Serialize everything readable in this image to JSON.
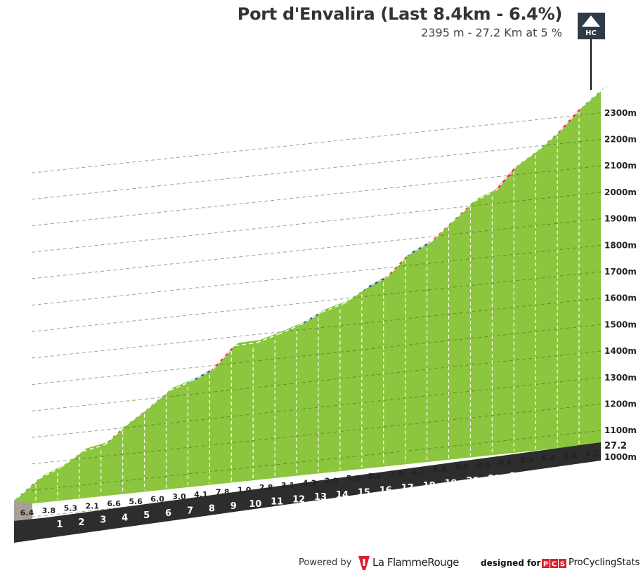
{
  "chart_data": {
    "type": "area",
    "title": "Port d'Envalira (Last 8.4km - 6.4%)",
    "subtitle": "2395 m - 27.2 Km at 5 %",
    "category_badge": "HC",
    "y_ticks": [
      "1000m",
      "1100m",
      "1200m",
      "1300m",
      "1400m",
      "1500m",
      "1600m",
      "1700m",
      "1800m",
      "1900m",
      "2000m",
      "2100m",
      "2200m",
      "2300m"
    ],
    "y_tick_values": [
      1000,
      1100,
      1200,
      1300,
      1400,
      1500,
      1600,
      1700,
      1800,
      1900,
      2000,
      2100,
      2200,
      2300
    ],
    "ylim": [
      1050,
      2395
    ],
    "x_ticks": [
      "1",
      "2",
      "3",
      "4",
      "5",
      "6",
      "7",
      "8",
      "9",
      "10",
      "11",
      "12",
      "13",
      "14",
      "15",
      "16",
      "17",
      "18",
      "19",
      "20",
      "21",
      "22",
      "23",
      "24",
      "25",
      "26"
    ],
    "total_distance_label": "27.2",
    "grades": [
      6.4,
      3.8,
      5.3,
      2.1,
      6.6,
      5.6,
      6.0,
      3.0,
      4.1,
      7.8,
      1.0,
      2.8,
      3.1,
      4.3,
      2.8,
      5.0,
      3.9,
      7.5,
      4.1,
      6.8,
      6.8,
      3.6,
      8.4,
      5.3,
      6.4,
      8.0,
      6.2
    ],
    "grade_labels": [
      "6.4",
      "3.8",
      "5.3",
      "2.1",
      "6.6",
      "5.6",
      "6.0",
      "3.0",
      "4.1",
      "7.8",
      "1.0",
      "2.8",
      "3.1",
      "4.3",
      "2.8",
      "5.0",
      "3.9",
      "7.5",
      "4.1",
      "6.8",
      "6.8",
      "3.6",
      "8.4",
      "5.3",
      "6.4",
      "8.0",
      "6.2"
    ],
    "grade_colors": {
      "hard": "#e8243a",
      "medium": "#1f5b86",
      "easy": "#7fc52e"
    },
    "fill_color": "#8cc63f",
    "base_color": "#2d2d2d"
  },
  "footer": {
    "powered_by": "Powered by",
    "lfr_brand": "La FlammeRouge",
    "designed_for": "designed for",
    "pcs_brand": "ProCyclingStats",
    "pcs_logo_letters": "PCS"
  }
}
